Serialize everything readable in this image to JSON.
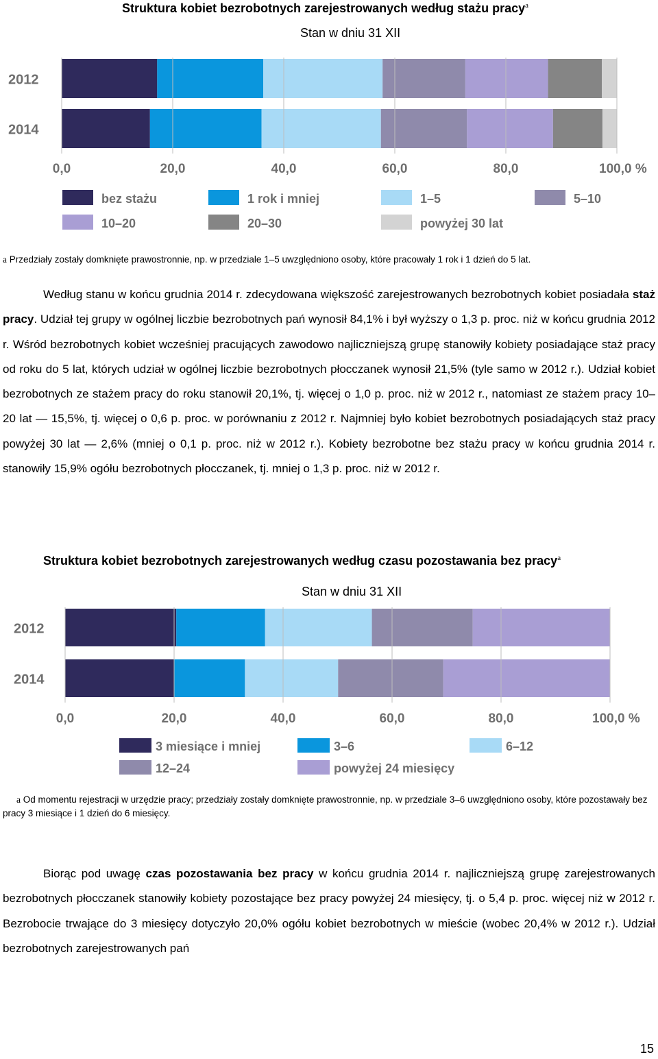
{
  "chart1": {
    "title": "Struktura kobiet bezrobotnych zarejestrowanych według stażu pracy",
    "title_sup": "a",
    "subtitle": "Stan w dniu 31 XII",
    "chart_data": {
      "type": "bar",
      "orientation": "horizontal-stacked-100",
      "categories": [
        "2012",
        "2014"
      ],
      "series": [
        {
          "name": "bez stażu",
          "color": "#2f2a5c",
          "values": [
            17.2,
            15.9
          ]
        },
        {
          "name": "1 rok i mniej",
          "color": "#0a96dd",
          "values": [
            19.1,
            20.1
          ]
        },
        {
          "name": "1–5",
          "color": "#a8daf6",
          "values": [
            21.5,
            21.5
          ]
        },
        {
          "name": "5–10",
          "color": "#8f8aab",
          "values": [
            14.9,
            15.5
          ]
        },
        {
          "name": "10–20",
          "color": "#a99ed4",
          "values": [
            14.9,
            15.5
          ]
        },
        {
          "name": "20–30",
          "color": "#858585",
          "values": [
            9.7,
            8.9
          ]
        },
        {
          "name": "powyżej 30 lat",
          "color": "#d3d3d3",
          "values": [
            2.7,
            2.6
          ]
        }
      ],
      "xlim": [
        0,
        100
      ],
      "xticks": [
        "0,0",
        "20,0",
        "40,0",
        "60,0",
        "80,0",
        "100,0 %"
      ],
      "legend_position": "bottom"
    }
  },
  "footnote1": {
    "marker": "a",
    "text": "Przedziały zostały domknięte prawostronnie, np. w przedziale 1–5 uwzględniono osoby, które pracowały 1 rok i 1 dzień do 5 lat."
  },
  "para1": {
    "t1": "Według stanu w końcu grudnia 2014 r. zdecydowana większość zarejestrowanych bezrobotnych kobiet posiadała ",
    "b1": "staż pracy",
    "t2": ". Udział tej grupy w ogólnej liczbie bezrobotnych pań wynosił 84,1% i był wyższy o 1,3 p. proc. niż w końcu grudnia 2012 r. Wśród bezrobotnych kobiet wcześniej pracujących zawodowo najliczniejszą grupę stanowiły kobiety posiadające staż pracy od roku do 5 lat, których udział w ogólnej liczbie bezrobotnych płocczanek wynosił 21,5% (tyle samo w 2012 r.). Udział kobiet bezrobotnych ze stażem pracy do roku stanowił 20,1%, tj. więcej o 1,0 p. proc. niż w 2012 r., natomiast ze stażem pracy 10–20 lat — 15,5%, tj. więcej o 0,6 p. proc. w porównaniu z 2012 r. Najmniej było kobiet bezrobotnych posiadających staż pracy powyżej 30 lat — 2,6% (mniej o 0,1 p. proc. niż w 2012 r.). Kobiety bezrobotne bez stażu pracy w końcu grudnia 2014 r. stanowiły 15,9% ogółu bezrobotnych płocczanek, tj. mniej o 1,3 p. proc. niż w 2012 r."
  },
  "chart2": {
    "title": "Struktura kobiet bezrobotnych zarejestrowanych według czasu pozostawania bez pracy",
    "title_sup": "a",
    "subtitle": "Stan w dniu 31 XII",
    "chart_data": {
      "type": "bar",
      "orientation": "horizontal-stacked-100",
      "categories": [
        "2012",
        "2014"
      ],
      "series": [
        {
          "name": "3 miesiące i mniej",
          "color": "#2f2a5c",
          "values": [
            20.4,
            20.0
          ]
        },
        {
          "name": "3–6",
          "color": "#0a96dd",
          "values": [
            16.3,
            13.0
          ]
        },
        {
          "name": "6–12",
          "color": "#a8daf6",
          "values": [
            19.6,
            17.1
          ]
        },
        {
          "name": "12–24",
          "color": "#8f8aab",
          "values": [
            18.5,
            19.3
          ]
        },
        {
          "name": "powyżej 24 miesięcy",
          "color": "#a99ed4",
          "values": [
            25.2,
            30.6
          ]
        }
      ],
      "xlim": [
        0,
        100
      ],
      "xticks": [
        "0,0",
        "20,0",
        "40,0",
        "60,0",
        "80,0",
        "100,0 %"
      ],
      "legend_position": "bottom"
    }
  },
  "footnote2": {
    "marker": "a",
    "text": "Od momentu rejestracji w urzędzie pracy; przedziały zostały domknięte prawostronnie, np. w przedziale 3–6 uwzględniono osoby, które pozostawały bez pracy 3 miesiące i 1 dzień do 6 miesięcy."
  },
  "para2": {
    "t1": "Biorąc pod uwagę ",
    "b1": "czas pozostawania bez pracy",
    "t2": " w końcu grudnia 2014 r. najliczniejszą grupę zarejestrowanych bezrobotnych płocczanek stanowiły kobiety pozostające bez pracy powyżej 24 miesięcy, tj. o 5,4 p. proc. więcej niż w 2012 r. Bezrobocie trwające do 3 miesięcy dotyczyło 20,0% ogółu kobiet bezrobotnych w mieście (wobec 20,4% w 2012 r.). Udział bezrobotnych zarejestrowanych pań"
  },
  "page_number": "15"
}
